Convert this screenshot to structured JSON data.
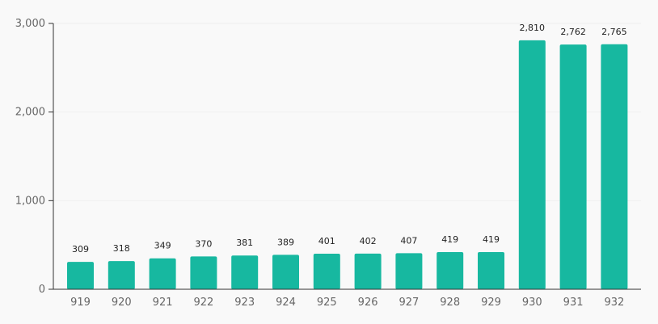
{
  "colors": {
    "bar": "#17b8a0",
    "background": "#f9f9f9",
    "axis": "#333333",
    "grid": "#f0f0f0",
    "tick_text": "#666666",
    "label_text": "#222222"
  },
  "chart_data": {
    "type": "bar",
    "categories": [
      "919",
      "920",
      "921",
      "922",
      "923",
      "924",
      "925",
      "926",
      "927",
      "928",
      "929",
      "930",
      "931",
      "932"
    ],
    "values": [
      309,
      318,
      349,
      370,
      381,
      389,
      401,
      402,
      407,
      419,
      419,
      2810,
      2762,
      2765
    ],
    "value_labels": [
      "309",
      "318",
      "349",
      "370",
      "381",
      "389",
      "401",
      "402",
      "407",
      "419",
      "419",
      "2,810",
      "2,762",
      "2,765"
    ],
    "ylim": [
      0,
      3000
    ],
    "yticks": [
      0,
      1000,
      2000,
      3000
    ],
    "ytick_labels": [
      "0",
      "1,000",
      "2,000",
      "3,000"
    ],
    "grid": true
  }
}
